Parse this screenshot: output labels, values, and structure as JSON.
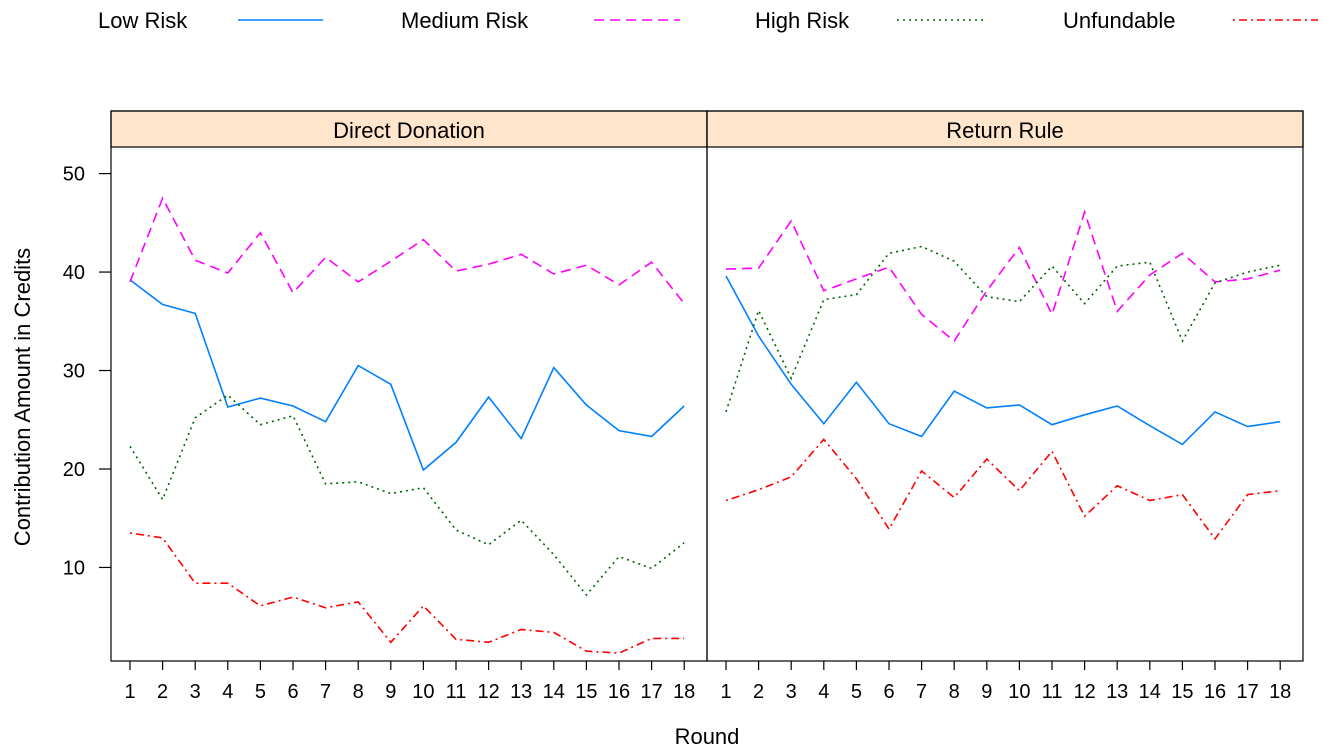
{
  "chart_data": {
    "type": "line",
    "xlabel": "Round",
    "ylabel": "Contribution Amount in Credits",
    "x": [
      1,
      2,
      3,
      4,
      5,
      6,
      7,
      8,
      9,
      10,
      11,
      12,
      13,
      14,
      15,
      16,
      17,
      18
    ],
    "ylim": [
      0.5,
      52.7
    ],
    "yticks": [
      10,
      20,
      30,
      40,
      50
    ],
    "strip_color": "#FFE5CC",
    "legend": {
      "placement": "top",
      "entries": [
        {
          "name": "Low Risk",
          "color": "#0080FF",
          "dash": "solid"
        },
        {
          "name": "Medium Risk",
          "color": "#FF00FF",
          "dash": "dashed"
        },
        {
          "name": "High Risk",
          "color": "#006400",
          "dash": "dotted"
        },
        {
          "name": "Unfundable",
          "color": "#FF0000",
          "dash": "dotdash"
        }
      ]
    },
    "panels": [
      {
        "title": "Direct Donation",
        "series": [
          {
            "name": "Low Risk",
            "values": [
              39.2,
              36.7,
              35.8,
              26.3,
              27.2,
              26.4,
              24.8,
              30.5,
              28.6,
              19.9,
              22.7,
              27.3,
              23.1,
              30.3,
              26.5,
              23.9,
              23.3,
              26.4
            ]
          },
          {
            "name": "Medium Risk",
            "values": [
              39.0,
              47.5,
              41.2,
              39.9,
              44.0,
              37.9,
              41.5,
              39.0,
              41.1,
              43.3,
              40.1,
              40.8,
              41.8,
              39.8,
              40.7,
              38.7,
              41.0,
              36.8
            ]
          },
          {
            "name": "High Risk",
            "values": [
              22.3,
              16.9,
              25.2,
              27.5,
              24.5,
              25.4,
              18.5,
              18.7,
              17.5,
              18.1,
              13.8,
              12.3,
              14.8,
              11.3,
              7.2,
              11.1,
              9.9,
              12.5
            ]
          },
          {
            "name": "Unfundable",
            "values": [
              13.5,
              13.0,
              8.4,
              8.4,
              6.1,
              7.0,
              5.9,
              6.5,
              2.4,
              6.1,
              2.7,
              2.4,
              3.7,
              3.4,
              1.5,
              1.3,
              2.8,
              2.8
            ]
          }
        ]
      },
      {
        "title": "Return Rule",
        "series": [
          {
            "name": "Low Risk",
            "values": [
              39.6,
              33.5,
              28.6,
              24.6,
              28.8,
              24.6,
              23.3,
              27.9,
              26.2,
              26.5,
              24.5,
              25.5,
              26.4,
              24.4,
              22.5,
              25.8,
              24.3,
              24.8
            ]
          },
          {
            "name": "Medium Risk",
            "values": [
              40.3,
              40.4,
              45.2,
              38.1,
              39.3,
              40.5,
              35.7,
              33.0,
              38.1,
              42.5,
              35.7,
              46.1,
              36.0,
              39.7,
              41.9,
              39.0,
              39.3,
              40.2
            ]
          },
          {
            "name": "High Risk",
            "values": [
              25.8,
              36.1,
              29.2,
              37.2,
              37.7,
              41.9,
              42.6,
              41.1,
              37.5,
              37.0,
              40.6,
              36.8,
              40.6,
              41.0,
              33.0,
              38.9,
              40.0,
              40.7
            ]
          },
          {
            "name": "Unfundable",
            "values": [
              16.8,
              17.9,
              19.2,
              23.0,
              19.0,
              13.9,
              19.8,
              17.1,
              21.0,
              17.8,
              21.8,
              15.2,
              18.3,
              16.8,
              17.4,
              12.9,
              17.4,
              17.8
            ]
          }
        ]
      }
    ]
  }
}
